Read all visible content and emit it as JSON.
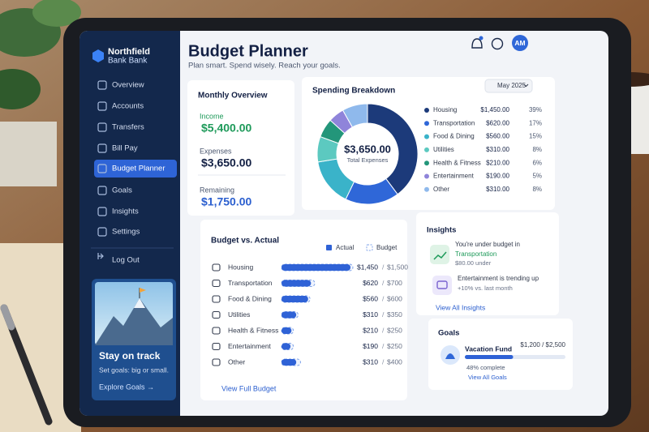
{
  "sidebar": {
    "brand": [
      "Northfield",
      "Bank Bank"
    ],
    "nav": [
      "Overview",
      "Accounts",
      "Transfers",
      "Bill Pay",
      "Budget Planner",
      "Goals",
      "Insights",
      "Settings"
    ],
    "logout": "Log Out",
    "promo": {
      "title": "Stay on track",
      "text": "Set goals: big or small.",
      "link": "Explore Goals →"
    }
  },
  "header": {
    "title": "Budget Planner",
    "subtitle": "Plan smart. Spend wisely. Reach your goals.",
    "avatar": "AM"
  },
  "overview": {
    "title": "Monthly Overview",
    "items": [
      {
        "label": "Income",
        "value": "$5,400.00"
      },
      {
        "label": "Expenses",
        "value": "$3,650.00"
      },
      {
        "label": "Remaining",
        "value": "$1,750.00"
      }
    ]
  },
  "spending": {
    "title": "Spending Breakdown",
    "period": "May 2025",
    "total": "$3,650.00",
    "total_label": "Total Expenses",
    "amounts": [
      "$1,450.00",
      "$620.00",
      "$560.00",
      "$310.00",
      "$210.00",
      "$190.00",
      "$310.00"
    ]
  },
  "chart_data": [
    {
      "type": "pie",
      "categories": [
        "Housing",
        "Transportation",
        "Food & Dining",
        "Utilities",
        "Health & Fitness",
        "Entertainment",
        "Other"
      ],
      "values": [
        39,
        17,
        15,
        8,
        6,
        5,
        8
      ],
      "value_labels": [
        "39%",
        "17%",
        "15%",
        "8%",
        "6%",
        "5%",
        "8%"
      ],
      "colors": [
        "#1c3a7a",
        "#2f67d8",
        "#3ab3c9",
        "#5cc9c0",
        "#23967a",
        "#8f84da",
        "#8fb9ec"
      ]
    },
    {
      "type": "bar",
      "orientation": "horizontal",
      "categories": [
        "Housing",
        "Transportation",
        "Food & Dining",
        "Utilities",
        "Health & Fitness",
        "Entertainment",
        "Other"
      ],
      "series": [
        {
          "name": "Actual",
          "color": "#2f62d6",
          "values": [
            1450,
            620,
            560,
            310,
            210,
            190,
            310
          ],
          "value_labels": [
            "$1,450",
            "$620",
            "$560",
            "$310",
            "$210",
            "$190",
            "$310"
          ]
        },
        {
          "name": "Budget",
          "color": "#7fa3ea",
          "values": [
            1500,
            700,
            600,
            350,
            250,
            250,
            400
          ],
          "value_labels": [
            "$1,500",
            "$700",
            "$600",
            "$350",
            "$250",
            "$250",
            "$400"
          ]
        }
      ],
      "xlim": [
        0,
        1500
      ]
    }
  ],
  "budget": {
    "title": "Budget vs. Actual",
    "separator": "/",
    "link": "View Full Budget"
  },
  "insights": {
    "title": "Insights",
    "items": [
      {
        "text": "You're under budget in",
        "highlight": "Transportation",
        "detail": "$80.00 under"
      },
      {
        "text": "Entertainment is trending up",
        "detail": "+10% vs. last month"
      }
    ],
    "link": "View All Insights"
  },
  "goals": {
    "title": "Goals",
    "name": "Vacation Fund",
    "amount": "$1,200 / $2,500",
    "progress": 48,
    "progress_label": "48% complete",
    "link": "View All Goals"
  }
}
